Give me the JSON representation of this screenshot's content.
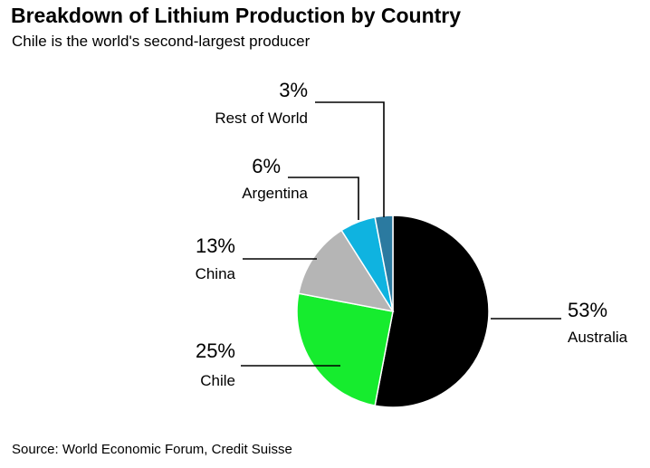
{
  "header": {
    "title": "Breakdown of Lithium Production by Country",
    "subtitle": "Chile is the world's second-largest producer"
  },
  "footer": {
    "source": "Source: World Economic Forum, Credit Suisse"
  },
  "chart_data": {
    "type": "pie",
    "title": "Breakdown of Lithium Production by Country",
    "subtitle": "Chile is the world's second-largest producer",
    "slices": [
      {
        "name": "Australia",
        "value": 53,
        "label": "53%",
        "color": "#000000"
      },
      {
        "name": "Chile",
        "value": 25,
        "label": "25%",
        "color": "#16ec2e"
      },
      {
        "name": "China",
        "value": 13,
        "label": "13%",
        "color": "#b5b5b5"
      },
      {
        "name": "Argentina",
        "value": 6,
        "label": "6%",
        "color": "#0fb3e0"
      },
      {
        "name": "Rest of World",
        "value": 3,
        "label": "3%",
        "color": "#2b7aa0"
      }
    ],
    "start_angle_deg": 0,
    "direction": "clockwise",
    "legend": "none"
  }
}
